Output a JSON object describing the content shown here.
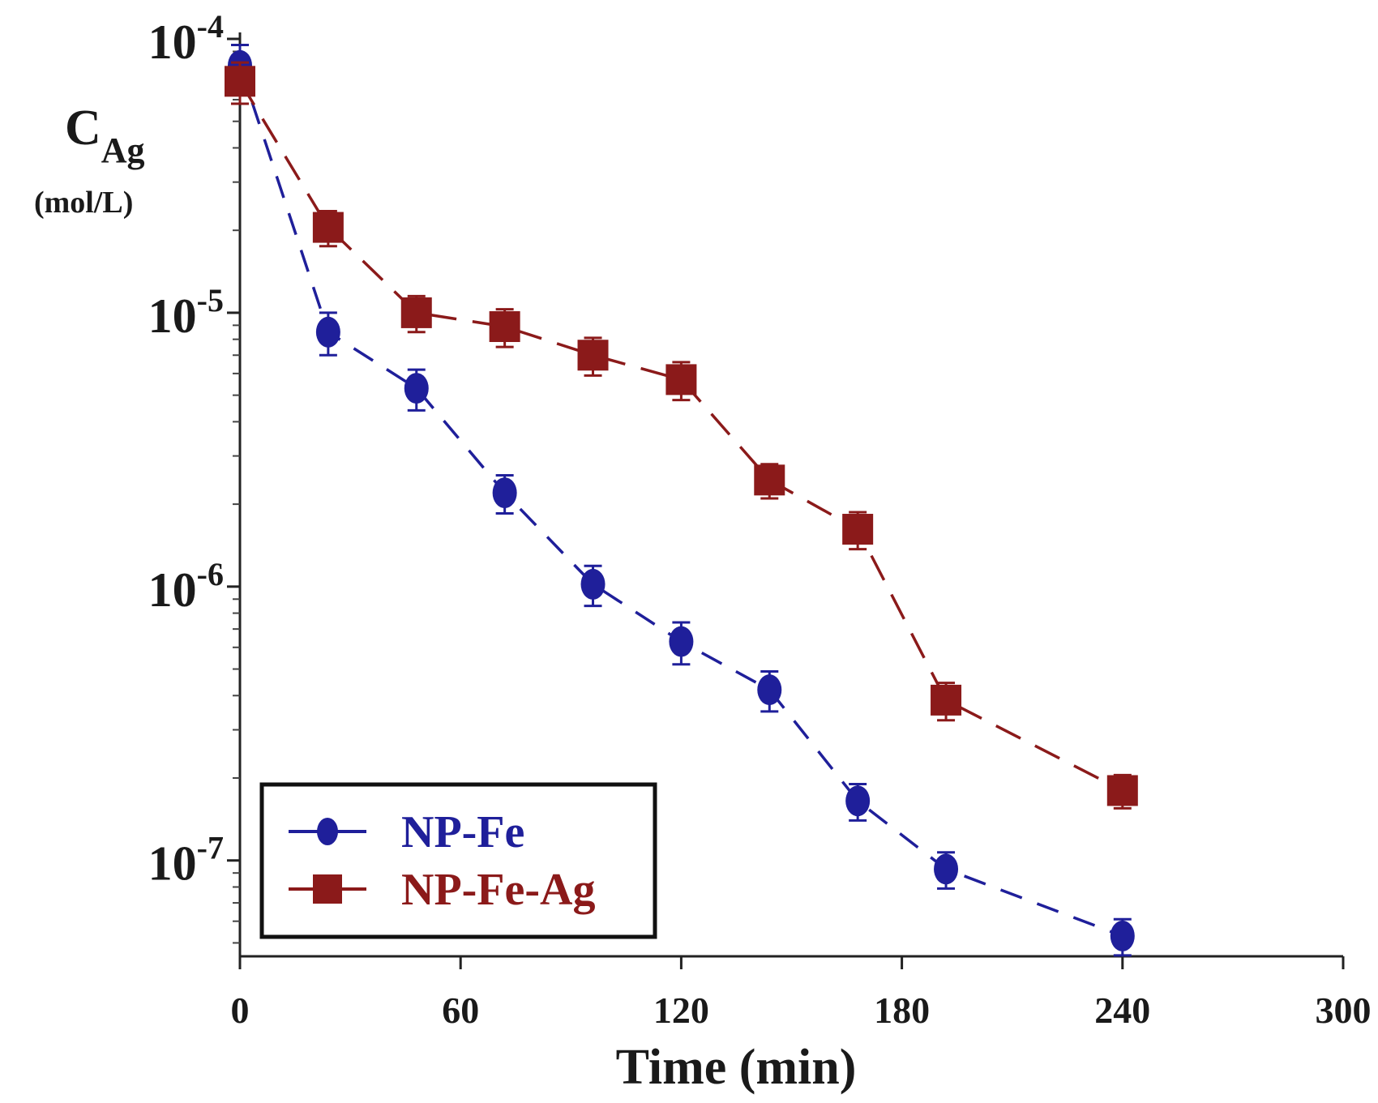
{
  "chart_data": {
    "type": "line",
    "title": "",
    "xlabel": "Time (min)",
    "ylabel": {
      "main": "C",
      "subscript": "Ag",
      "unit": "(mol/L)"
    },
    "x_scale": "linear",
    "y_scale": "log",
    "xlim": [
      0,
      300
    ],
    "ylim_log10": [
      -7.35,
      -4
    ],
    "x_ticks": [
      0,
      60,
      120,
      180,
      240,
      300
    ],
    "x_tick_labels": [
      "0",
      "60",
      "120",
      "180",
      "240",
      "300"
    ],
    "y_ticks_exponent": [
      -4,
      -5,
      -6,
      -7
    ],
    "y_tick_labels": [
      {
        "base": "10",
        "exp": "-4"
      },
      {
        "base": "10",
        "exp": "-5"
      },
      {
        "base": "10",
        "exp": "-6"
      },
      {
        "base": "10",
        "exp": "-7"
      }
    ],
    "grid": false,
    "legend_position": "bottom-left",
    "series": [
      {
        "name": "NP-Fe",
        "color": "#1f1f9a",
        "marker": "circle",
        "x": [
          0,
          24,
          48,
          72,
          96,
          120,
          144,
          168,
          192,
          240
        ],
        "y": [
          8e-05,
          8.5e-06,
          5.3e-06,
          2.2e-06,
          1.02e-06,
          6.3e-07,
          4.2e-07,
          1.65e-07,
          9.3e-08,
          5.3e-08
        ],
        "err": [
          1.5e-05,
          1.5e-06,
          9e-07,
          3.5e-07,
          1.7e-07,
          1.1e-07,
          7e-08,
          2.5e-08,
          1.4e-08,
          8e-09
        ]
      },
      {
        "name": "NP-Fe-Ag",
        "color": "#8b1a1a",
        "marker": "square",
        "x": [
          0,
          24,
          48,
          72,
          96,
          120,
          144,
          168,
          192,
          240
        ],
        "y": [
          7e-05,
          2.05e-05,
          1e-05,
          8.9e-06,
          7e-06,
          5.7e-06,
          2.45e-06,
          1.62e-06,
          3.85e-07,
          1.8e-07
        ],
        "err": [
          1.2e-05,
          3e-06,
          1.5e-06,
          1.4e-06,
          1.1e-06,
          9e-07,
          3.5e-07,
          2.5e-07,
          6e-08,
          2.5e-08
        ]
      }
    ]
  }
}
